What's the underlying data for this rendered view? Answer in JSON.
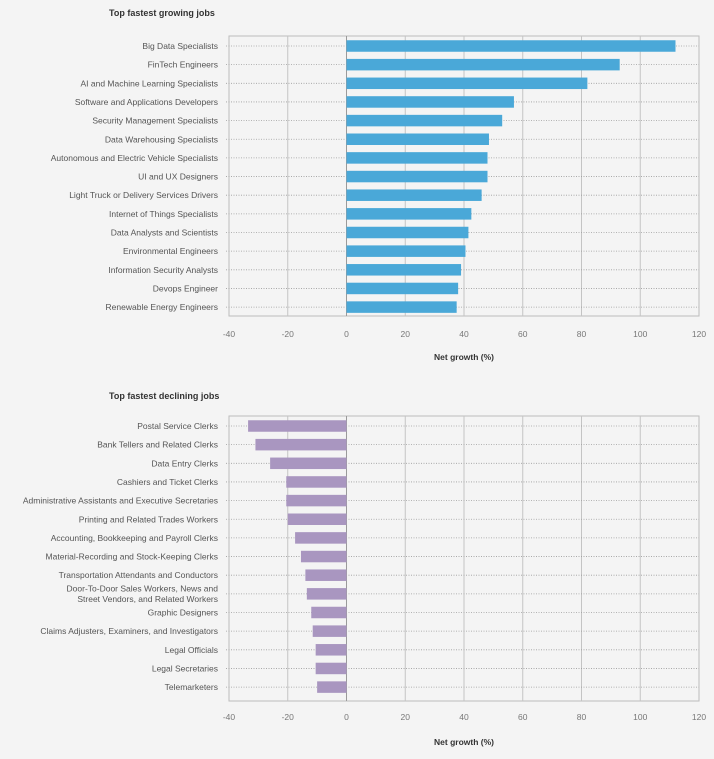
{
  "chart_data": [
    {
      "type": "bar",
      "orientation": "horizontal",
      "title": "Top fastest growing jobs",
      "xlabel": "Net growth (%)",
      "ylabel": "",
      "xlim": [
        -40,
        120
      ],
      "xticks": [
        -40,
        -20,
        0,
        20,
        40,
        60,
        80,
        100,
        120
      ],
      "color": "#4aa8d8",
      "categories": [
        [
          "Big Data Specialists"
        ],
        [
          "FinTech Engineers"
        ],
        [
          "AI and Machine Learning Specialists"
        ],
        [
          "Software and Applications Developers"
        ],
        [
          "Security Management Specialists"
        ],
        [
          "Data Warehousing Specialists"
        ],
        [
          "Autonomous and Electric Vehicle Specialists"
        ],
        [
          "UI and UX Designers"
        ],
        [
          "Light Truck or Delivery Services Drivers"
        ],
        [
          "Internet of Things Specialists"
        ],
        [
          "Data Analysts and Scientists"
        ],
        [
          "Environmental Engineers"
        ],
        [
          "Information Security Analysts"
        ],
        [
          "Devops Engineer"
        ],
        [
          "Renewable Energy Engineers"
        ]
      ],
      "values": [
        112,
        93,
        82,
        57,
        53,
        48.5,
        48,
        48,
        46,
        42.5,
        41.5,
        40.5,
        39,
        38,
        37.5
      ],
      "grid": true
    },
    {
      "type": "bar",
      "orientation": "horizontal",
      "title": "Top fastest declining jobs",
      "xlabel": "Net growth (%)",
      "ylabel": "",
      "xlim": [
        -40,
        120
      ],
      "xticks": [
        -40,
        -20,
        0,
        20,
        40,
        60,
        80,
        100,
        120
      ],
      "color": "#a996c0",
      "categories": [
        [
          "Postal Service Clerks"
        ],
        [
          "Bank Tellers and Related Clerks"
        ],
        [
          "Data Entry Clerks"
        ],
        [
          "Cashiers and Ticket Clerks"
        ],
        [
          "Administrative Assistants and Executive Secretaries"
        ],
        [
          "Printing and Related Trades Workers"
        ],
        [
          "Accounting, Bookkeeping and Payroll Clerks"
        ],
        [
          "Material-Recording and Stock-Keeping Clerks"
        ],
        [
          "Transportation Attendants and Conductors"
        ],
        [
          "Door-To-Door Sales Workers, News and",
          "Street Vendors, and Related Workers"
        ],
        [
          "Graphic Designers"
        ],
        [
          "Claims Adjusters, Examiners, and Investigators"
        ],
        [
          "Legal Officials"
        ],
        [
          "Legal Secretaries"
        ],
        [
          "Telemarketers"
        ]
      ],
      "values": [
        -33.5,
        -31,
        -26,
        -20.5,
        -20.5,
        -20,
        -17.5,
        -15.5,
        -14,
        -13.5,
        -12,
        -11.5,
        -10.5,
        -10.5,
        -10
      ],
      "grid": true
    }
  ]
}
